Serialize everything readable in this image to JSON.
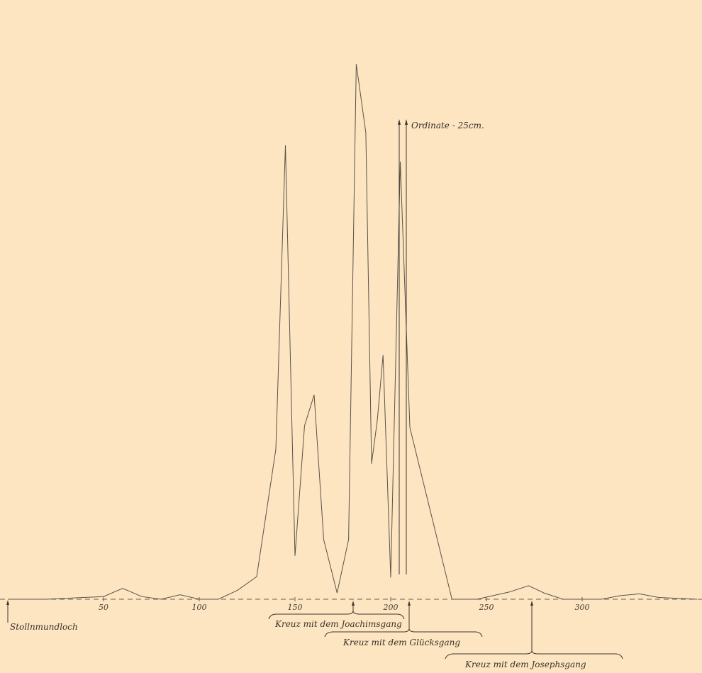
{
  "chart_data": {
    "type": "line",
    "x_ticks": [
      50,
      100,
      150,
      200,
      250,
      300
    ],
    "xlim": [
      0,
      365
    ],
    "ylim": [
      0,
      25
    ],
    "ordinate_label": "Ordinate - 25cm.",
    "x": [
      0,
      20,
      50,
      60,
      70,
      80,
      90,
      100,
      110,
      120,
      130,
      140,
      145,
      150,
      155,
      160,
      165,
      172,
      178,
      182,
      187,
      190,
      193,
      196,
      200,
      205,
      210,
      232,
      245,
      262,
      272,
      280,
      290,
      300,
      310,
      320,
      330,
      340,
      360
    ],
    "y": [
      0,
      0,
      0.15,
      0.6,
      0.15,
      0,
      0.25,
      0,
      0,
      0.5,
      1.25,
      8.3,
      25.1,
      2.4,
      9.6,
      11.3,
      3.3,
      0.35,
      3.3,
      29.6,
      25.8,
      7.5,
      9.9,
      13.5,
      1.2,
      24.2,
      9.5,
      0,
      0,
      0.4,
      0.75,
      0.35,
      0,
      0,
      0,
      0.2,
      0.3,
      0.1,
      0
    ],
    "markers": [
      {
        "x": 0,
        "label": "Stollnmundloch"
      },
      {
        "x": 180,
        "label": "Kreuz mit dem Joachimsgang"
      },
      {
        "x": 205,
        "label": "Kreuz mit dem Glücksgang"
      },
      {
        "x": 275,
        "label": "Kreuz mit dem Josephsgang"
      }
    ],
    "colors": {
      "line": "#5b5248",
      "paper": "#fce5c0"
    }
  }
}
